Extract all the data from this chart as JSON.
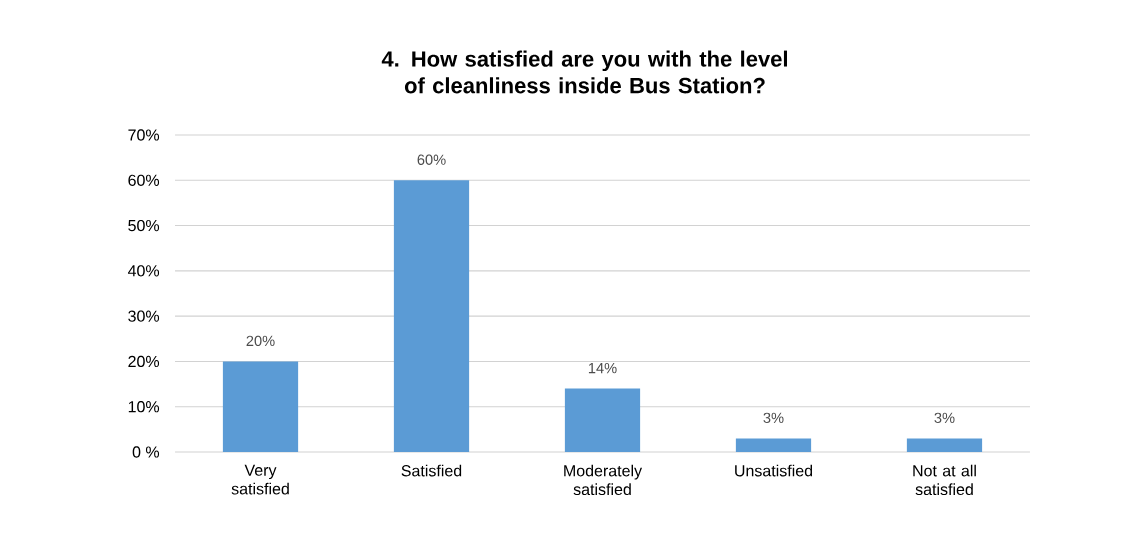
{
  "chart_data": {
    "type": "bar",
    "title": "4. How satisfied are you with the level of cleanliness inside Bus Station?",
    "categories": [
      "Very satisfied",
      "Satisfied",
      "Moderately satisfied",
      "Unsatisfied",
      "Not at all satisfied"
    ],
    "values": [
      20,
      60,
      14,
      3,
      3
    ],
    "value_labels": [
      "20%",
      "60%",
      "14%",
      "3%",
      "3%"
    ],
    "color": "#5b9bd5",
    "ylim": [
      0,
      70
    ],
    "yticks": [
      {
        "value": 0,
        "label": "0 %"
      },
      {
        "value": 10,
        "label": "10%"
      },
      {
        "value": 20,
        "label": "20%"
      },
      {
        "value": 30,
        "label": "30%"
      },
      {
        "value": 40,
        "label": "40%"
      },
      {
        "value": 50,
        "label": "50%"
      },
      {
        "value": 60,
        "label": "60%"
      },
      {
        "value": 70,
        "label": "70%"
      }
    ],
    "grid": "y"
  }
}
